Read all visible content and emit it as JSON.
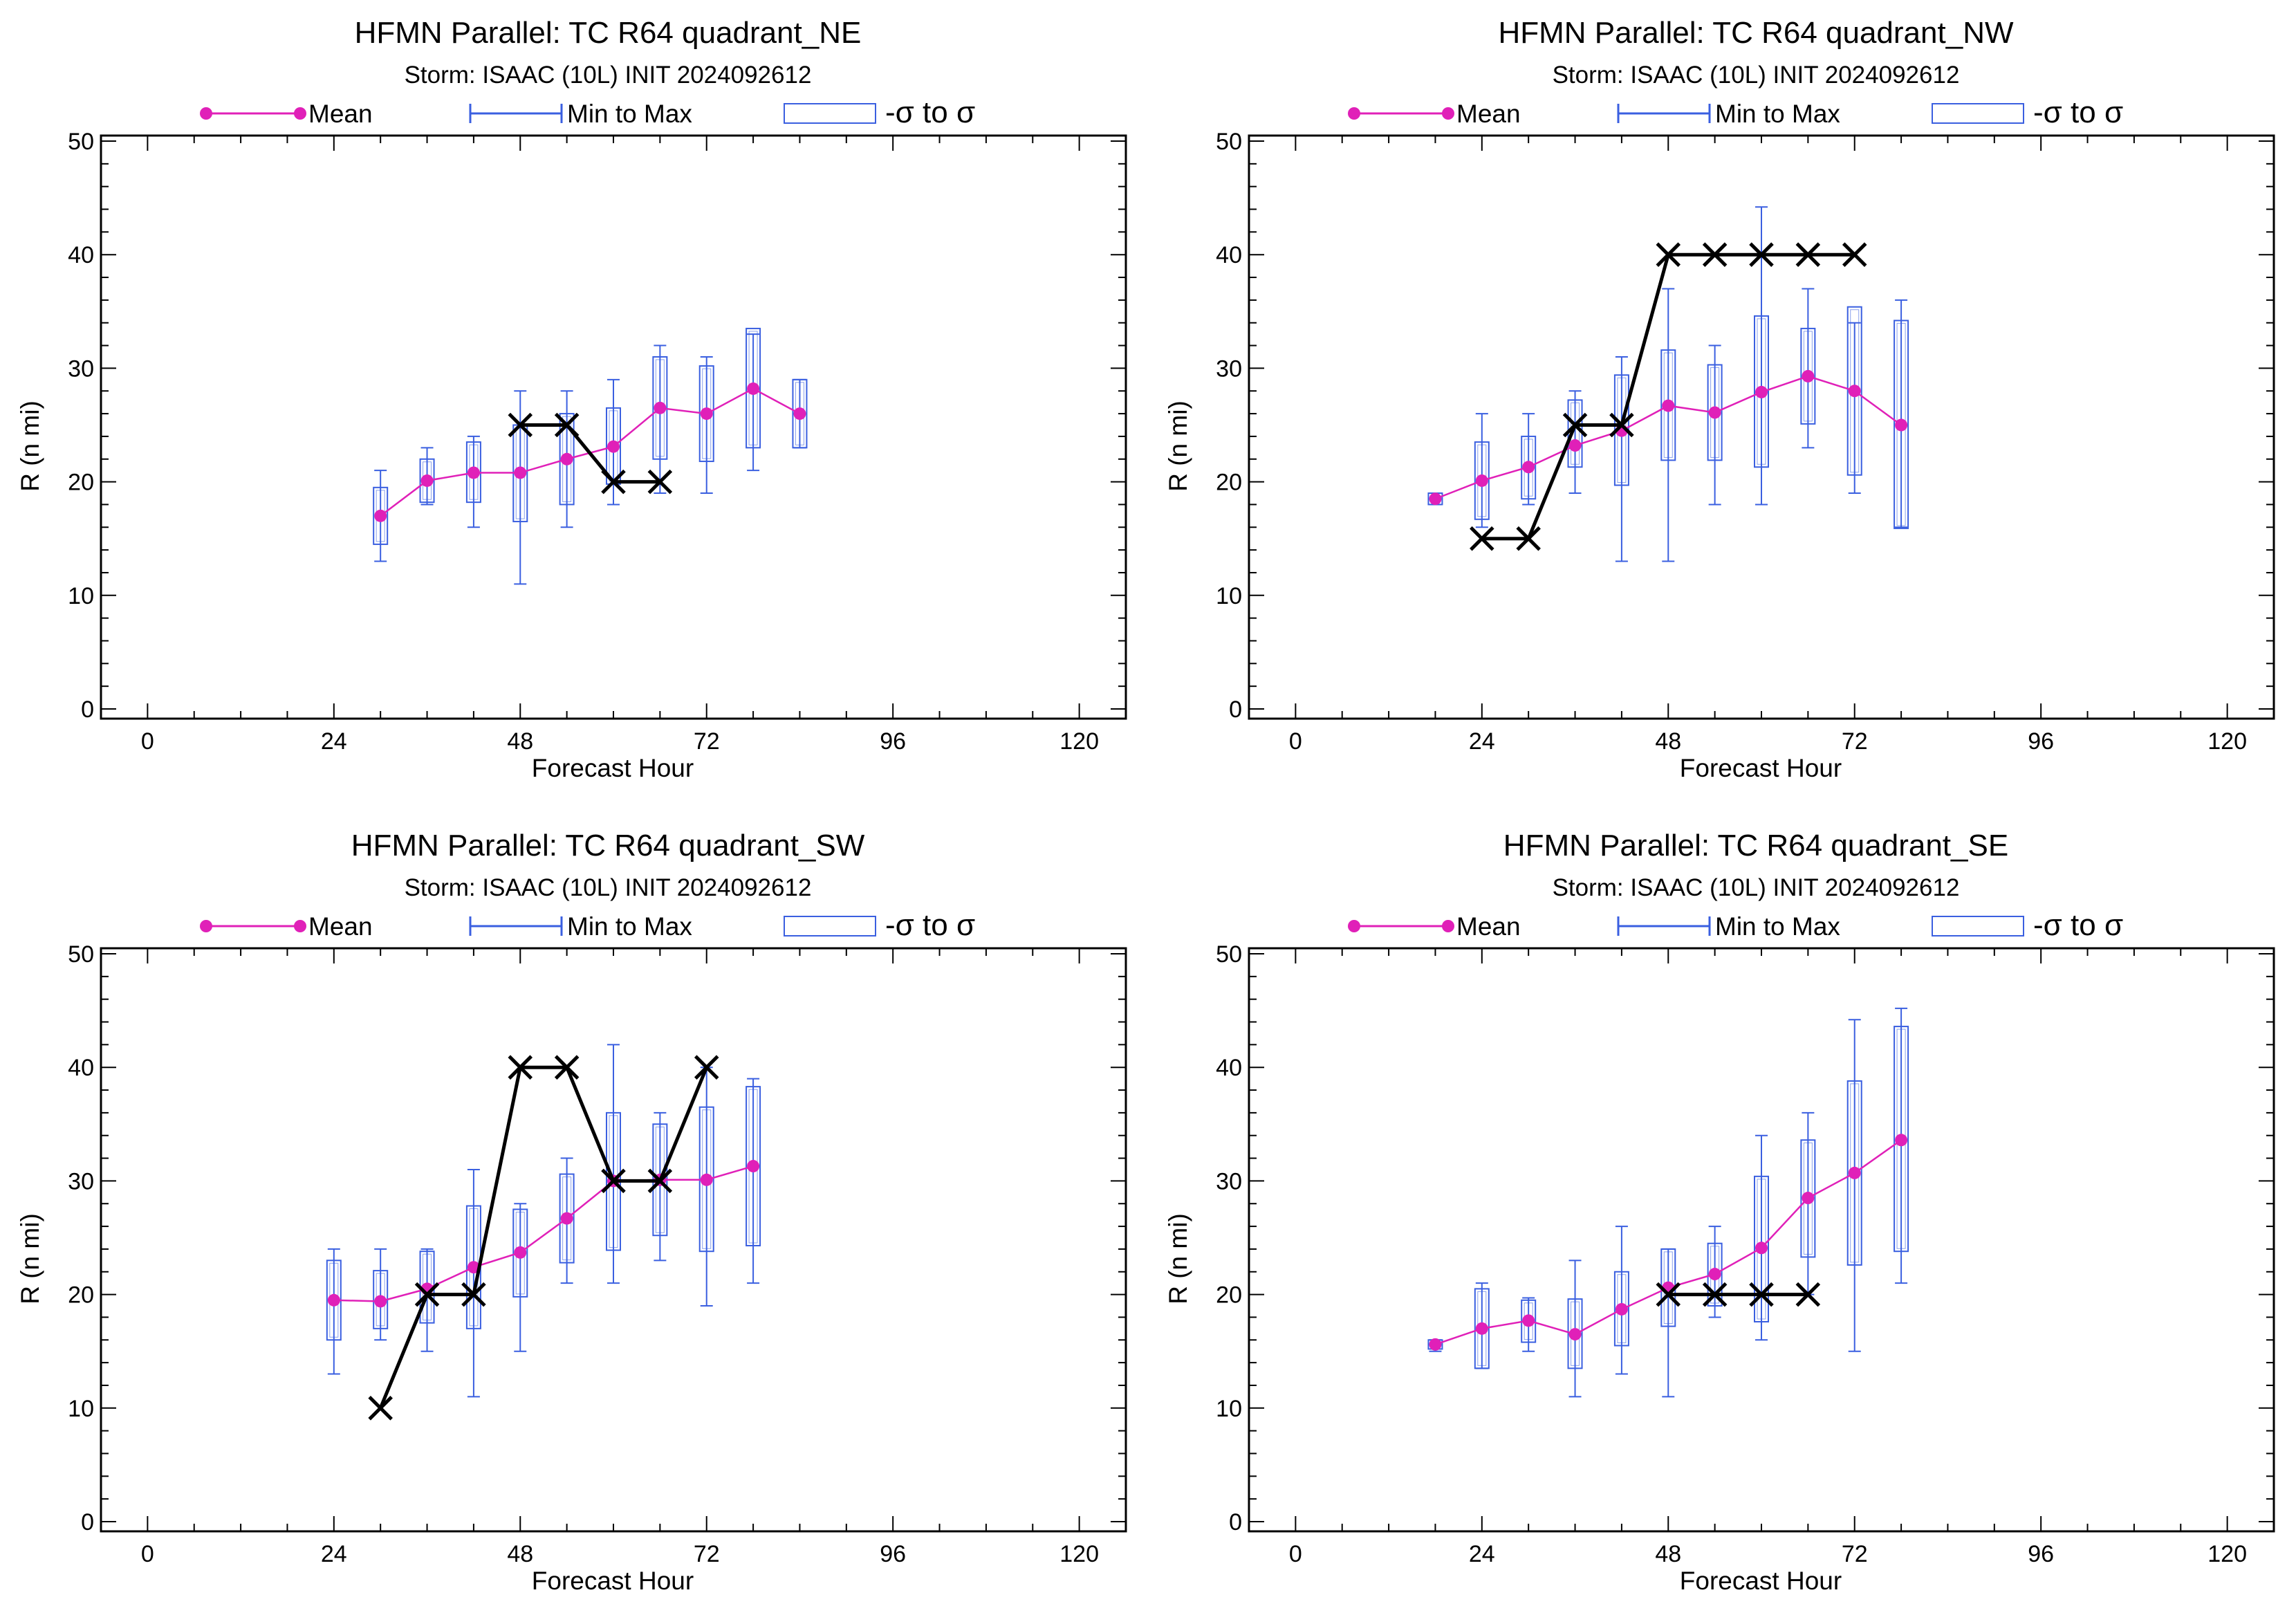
{
  "legend": {
    "mean_label": "Mean",
    "minmax_label": "Min to Max",
    "sigma_label": "-σ to σ"
  },
  "colors": {
    "mean": "#e020b8",
    "box": "#3a5fe0",
    "official": "#000000"
  },
  "chart_data": [
    {
      "type": "box",
      "title": "HFMN Parallel: TC  R64 quadrant_NE",
      "subtitle": "Storm: ISAAC (10L) INIT 2024092612",
      "xlabel": "Forecast Hour",
      "ylabel": "R (n mi)",
      "xlim": [
        -6,
        126
      ],
      "ylim": [
        0,
        50
      ],
      "xticks": [
        0,
        24,
        48,
        72,
        96,
        120
      ],
      "yticks": [
        0,
        10,
        20,
        30,
        40,
        50
      ],
      "series": [
        {
          "name": "Mean",
          "x": [
            30,
            36,
            42,
            48,
            54,
            60,
            66,
            72,
            78,
            84
          ],
          "values": [
            17,
            20.1,
            20.8,
            20.8,
            22,
            23.1,
            26.5,
            26,
            28.2,
            26
          ]
        },
        {
          "name": "Min to Max",
          "x": [
            30,
            36,
            42,
            48,
            54,
            60,
            66,
            72,
            78,
            84
          ],
          "min": [
            13,
            18,
            16,
            11,
            16,
            18,
            19,
            19,
            21,
            23
          ],
          "max": [
            21,
            23,
            24,
            28,
            28,
            29,
            32,
            31,
            33,
            29
          ]
        },
        {
          "name": "-σ to σ",
          "x": [
            30,
            36,
            42,
            48,
            54,
            60,
            66,
            72,
            78,
            84
          ],
          "low": [
            14.5,
            18.2,
            18.2,
            16.5,
            18,
            19.8,
            22,
            21.8,
            23,
            23
          ],
          "high": [
            19.5,
            22,
            23.5,
            25,
            26,
            26.5,
            31,
            30.2,
            33.5,
            29
          ]
        },
        {
          "x": [
            48,
            54,
            60,
            66
          ],
          "values": [
            25,
            25,
            20,
            20
          ]
        }
      ]
    },
    {
      "type": "box",
      "title": "HFMN Parallel: TC  R64 quadrant_NW",
      "subtitle": "Storm: ISAAC (10L) INIT 2024092612",
      "xlabel": "Forecast Hour",
      "ylabel": "R (n mi)",
      "xlim": [
        -6,
        126
      ],
      "ylim": [
        0,
        50
      ],
      "xticks": [
        0,
        24,
        48,
        72,
        96,
        120
      ],
      "yticks": [
        0,
        10,
        20,
        30,
        40,
        50
      ],
      "series": [
        {
          "name": "Mean",
          "x": [
            18,
            24,
            30,
            36,
            42,
            48,
            54,
            60,
            66,
            72,
            78
          ],
          "values": [
            18.5,
            20.1,
            21.3,
            23.2,
            24.5,
            26.7,
            26.1,
            27.9,
            29.3,
            28,
            25
          ]
        },
        {
          "name": "Min to Max",
          "x": [
            18,
            24,
            30,
            36,
            42,
            48,
            54,
            60,
            66,
            72,
            78
          ],
          "min": [
            18,
            16,
            18,
            19,
            13,
            13,
            18,
            18,
            23,
            19,
            16
          ],
          "max": [
            19,
            26,
            26,
            28,
            31,
            37,
            32,
            44.2,
            37,
            34,
            36
          ]
        },
        {
          "name": "-σ to σ",
          "x": [
            18,
            24,
            30,
            36,
            42,
            48,
            54,
            60,
            66,
            72,
            78
          ],
          "low": [
            18,
            16.7,
            18.5,
            21.3,
            19.7,
            21.9,
            21.9,
            21.3,
            25.1,
            20.6,
            15.9
          ],
          "high": [
            19,
            23.5,
            24,
            27.2,
            29.4,
            31.6,
            30.3,
            34.6,
            33.5,
            35.4,
            34.2
          ]
        },
        {
          "x": [
            24,
            30,
            36,
            42,
            48,
            54,
            60,
            66,
            72
          ],
          "values": [
            15,
            15,
            25,
            25,
            40,
            40,
            40,
            40,
            40
          ]
        }
      ]
    },
    {
      "type": "box",
      "title": "HFMN Parallel: TC  R64 quadrant_SW",
      "subtitle": "Storm: ISAAC (10L) INIT 2024092612",
      "xlabel": "Forecast Hour",
      "ylabel": "R (n mi)",
      "xlim": [
        -6,
        126
      ],
      "ylim": [
        0,
        50
      ],
      "xticks": [
        0,
        24,
        48,
        72,
        96,
        120
      ],
      "yticks": [
        0,
        10,
        20,
        30,
        40,
        50
      ],
      "series": [
        {
          "name": "Mean",
          "x": [
            24,
            30,
            36,
            42,
            48,
            54,
            60,
            66,
            72,
            78
          ],
          "values": [
            19.5,
            19.4,
            20.5,
            22.4,
            23.7,
            26.7,
            30,
            30.1,
            30.1,
            31.3
          ]
        },
        {
          "name": "Min to Max",
          "x": [
            24,
            30,
            36,
            42,
            48,
            54,
            60,
            66,
            72,
            78
          ],
          "min": [
            13,
            16,
            15,
            11,
            15,
            21,
            21,
            23,
            19,
            21
          ],
          "max": [
            24,
            24,
            24,
            31,
            28,
            32,
            42,
            36,
            40,
            39
          ]
        },
        {
          "name": "-σ to σ",
          "x": [
            24,
            30,
            36,
            42,
            48,
            54,
            60,
            66,
            72,
            78
          ],
          "low": [
            16,
            17,
            17.5,
            17,
            19.8,
            22.8,
            23.9,
            25.2,
            23.8,
            24.3
          ],
          "high": [
            23,
            22.1,
            23.8,
            27.8,
            27.5,
            30.6,
            36,
            35,
            36.5,
            38.3
          ]
        },
        {
          "x": [
            30,
            36,
            42,
            48,
            54,
            60,
            66,
            72
          ],
          "values": [
            10,
            20,
            20,
            40,
            40,
            30,
            30,
            40
          ]
        }
      ]
    },
    {
      "type": "box",
      "title": "HFMN Parallel: TC  R64 quadrant_SE",
      "subtitle": "Storm: ISAAC (10L) INIT 2024092612",
      "xlabel": "Forecast Hour",
      "ylabel": "R (n mi)",
      "xlim": [
        -6,
        126
      ],
      "ylim": [
        0,
        50
      ],
      "xticks": [
        0,
        24,
        48,
        72,
        96,
        120
      ],
      "yticks": [
        0,
        10,
        20,
        30,
        40,
        50
      ],
      "series": [
        {
          "name": "Mean",
          "x": [
            18,
            24,
            30,
            36,
            42,
            48,
            54,
            60,
            66,
            72,
            78
          ],
          "values": [
            15.6,
            17,
            17.7,
            16.5,
            18.7,
            20.6,
            21.8,
            24.1,
            28.5,
            30.7,
            33.6
          ]
        },
        {
          "name": "Min to Max",
          "x": [
            18,
            24,
            30,
            36,
            42,
            48,
            54,
            60,
            66,
            72,
            78
          ],
          "min": [
            15,
            13.5,
            15,
            11,
            13,
            11,
            18,
            16,
            20,
            15,
            21
          ],
          "max": [
            16,
            21,
            19.7,
            23,
            26,
            24,
            26,
            34,
            36,
            44.2,
            45.2
          ]
        },
        {
          "name": "-σ to σ",
          "x": [
            18,
            24,
            30,
            36,
            42,
            48,
            54,
            60,
            66,
            72,
            78
          ],
          "low": [
            15.2,
            13.5,
            15.8,
            13.5,
            15.5,
            17.2,
            19,
            17.6,
            23.3,
            22.6,
            23.8
          ],
          "high": [
            16,
            20.5,
            19.5,
            19.6,
            22,
            24,
            24.5,
            30.4,
            33.6,
            38.8,
            43.6
          ]
        },
        {
          "x": [
            48,
            54,
            60,
            66
          ],
          "values": [
            20,
            20,
            20,
            20
          ]
        }
      ]
    }
  ]
}
